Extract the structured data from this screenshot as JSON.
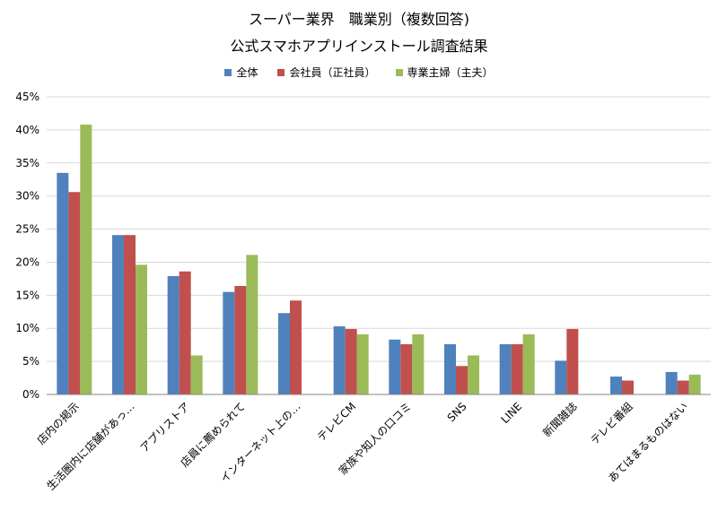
{
  "chart_data": {
    "type": "bar",
    "title_lines": [
      "スーパー業界　職業別（複数回答)",
      "公式スマホアプリインストール調査結果"
    ],
    "categories": [
      "店内の掲示",
      "生活圏内に店舗があっ…",
      "アプリストア",
      "店員に薦められて",
      "インターネット上の…",
      "テレビCM",
      "家族や知人の口コミ",
      "SNS",
      "LINE",
      "新聞雑誌",
      "テレビ番組",
      "あてはまるものはない"
    ],
    "series": [
      {
        "name": "全体",
        "color": "#4f81bd",
        "values": [
          33.5,
          24.1,
          17.9,
          15.5,
          12.3,
          10.3,
          8.3,
          7.6,
          7.6,
          5.1,
          2.7,
          3.4
        ]
      },
      {
        "name": "会社員（正社員）",
        "color": "#c0504d",
        "values": [
          30.6,
          24.1,
          18.6,
          16.4,
          14.2,
          9.9,
          7.6,
          4.3,
          7.6,
          9.9,
          2.1,
          2.1
        ]
      },
      {
        "name": "専業主婦（主夫）",
        "color": "#9bbb59",
        "values": [
          40.8,
          19.6,
          5.9,
          21.1,
          0,
          9.1,
          9.1,
          5.9,
          9.1,
          0,
          0,
          3.0
        ]
      }
    ],
    "ylim": [
      0,
      45
    ],
    "ytick_step": 5,
    "ytick_labels": [
      "0%",
      "5%",
      "10%",
      "15%",
      "20%",
      "25%",
      "30%",
      "35%",
      "40%",
      "45%"
    ],
    "grid": true,
    "legend_position": "top-center"
  }
}
